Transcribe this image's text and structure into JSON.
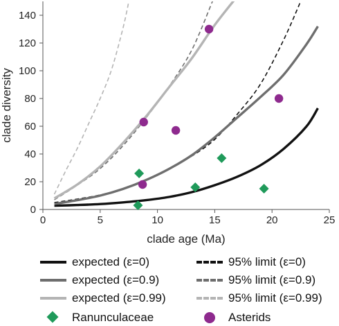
{
  "chart_data": {
    "type": "line",
    "xlabel": "clade age (Ma)",
    "ylabel": "clade diversity",
    "xlim": [
      0,
      25
    ],
    "ylim": [
      0,
      150
    ],
    "xticks": [
      0,
      5,
      10,
      15,
      20,
      25
    ],
    "yticks": [
      0,
      20,
      40,
      60,
      80,
      100,
      120,
      140
    ],
    "grid": false,
    "legend_position": "bottom",
    "series": [
      {
        "name": "expected (ε=0)",
        "style": "solid",
        "color": "#111111",
        "x": [
          1,
          3,
          5,
          7,
          9,
          11,
          13,
          15,
          17,
          19,
          21,
          23,
          24
        ],
        "y": [
          2.7,
          3.2,
          3.9,
          5.1,
          6.7,
          9.0,
          12.5,
          17.5,
          23.7,
          31.9,
          43.6,
          59.8,
          73.0
        ]
      },
      {
        "name": "expected (ε=0.9)",
        "style": "solid",
        "color": "#6e6e6e",
        "x": [
          1,
          3,
          5,
          7,
          9,
          11,
          13,
          15,
          17,
          19,
          21,
          23,
          24
        ],
        "y": [
          4.0,
          6.7,
          10.0,
          14.8,
          21.2,
          29.2,
          39.1,
          52.0,
          66.5,
          81.1,
          97.0,
          119.0,
          132.0
        ]
      },
      {
        "name": "expected (ε=0.99)",
        "style": "solid",
        "color": "#b4b4b4",
        "x": [
          1,
          3,
          5,
          7,
          9,
          11,
          13,
          15,
          17
        ],
        "y": [
          8.0,
          18.0,
          31.0,
          48.0,
          67.0,
          88.0,
          109.0,
          133.0,
          154.0
        ]
      },
      {
        "name": "95% limit (ε=0)",
        "style": "dashed",
        "color": "#111111",
        "x": [
          1,
          3,
          5,
          7,
          9,
          11,
          13,
          15,
          17,
          19,
          21,
          22.5
        ],
        "y": [
          5.0,
          7.5,
          10.5,
          15.0,
          21.5,
          29.5,
          38.5,
          50.5,
          69.0,
          90.5,
          122.0,
          150.0
        ]
      },
      {
        "name": "95% limit (ε=0.9)",
        "style": "dashed",
        "color": "#6e6e6e",
        "x": [
          1,
          3,
          5,
          7,
          9,
          11,
          13,
          14.8
        ],
        "y": [
          7.0,
          17.5,
          29.5,
          46.0,
          66.0,
          88.5,
          115.0,
          150.0
        ]
      },
      {
        "name": "95% limit (ε=0.99)",
        "style": "dashed",
        "color": "#b4b4b4",
        "x": [
          1,
          2,
          3,
          4,
          5,
          6,
          7,
          7.5
        ],
        "y": [
          11.0,
          28.0,
          44.0,
          62.0,
          80.0,
          101.0,
          131.0,
          150.0
        ]
      }
    ],
    "points": [
      {
        "name": "Ranunculaceae",
        "marker": "diamond",
        "color": "#1f9a5a",
        "x": [
          8.3,
          8.4,
          13.3,
          15.6,
          19.3
        ],
        "y": [
          3.0,
          26.0,
          16.0,
          37.0,
          15.0
        ]
      },
      {
        "name": "Asterids",
        "marker": "circle",
        "color": "#8e2a8e",
        "x": [
          8.7,
          8.8,
          11.6,
          14.5,
          20.6
        ],
        "y": [
          18.0,
          63.0,
          57.0,
          130.0,
          80.0
        ]
      }
    ]
  }
}
